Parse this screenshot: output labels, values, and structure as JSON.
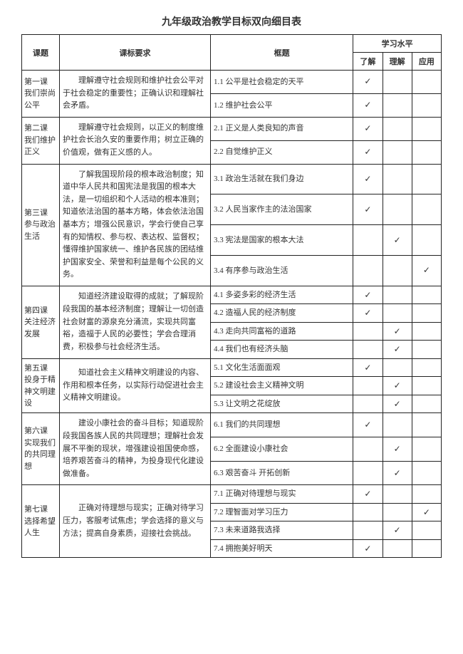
{
  "title": "九年级政治教学目标双向细目表",
  "headers": {
    "lesson": "课题",
    "requirement": "课标要求",
    "framework": "框题",
    "level_group": "学习水平",
    "l1": "了解",
    "l2": "理解",
    "l3": "应用"
  },
  "check": "✓",
  "lessons": [
    {
      "name": "第一课 我们崇尚公平",
      "req": "理解遵守社会规则和维护社会公平对于社会稳定的重要性；正确认识和理解社会矛盾。",
      "rows": [
        {
          "frame": "1.1 公平是社会稳定的天平",
          "lv": [
            true,
            false,
            false
          ]
        },
        {
          "frame": "1.2 维护社会公平",
          "lv": [
            true,
            false,
            false
          ]
        }
      ]
    },
    {
      "name": "第二课 我们维护正义",
      "req": "理解遵守社会规则，以正义的制度维护社会长治久安的重要作用；树立正确的价值观，做有正义感的人。",
      "rows": [
        {
          "frame": "2.1 正义是人类良知的声音",
          "lv": [
            true,
            false,
            false
          ]
        },
        {
          "frame": "2.2 自觉维护正义",
          "lv": [
            true,
            false,
            false
          ]
        }
      ]
    },
    {
      "name": "第三课 参与政治生活",
      "req": "了解我国现阶段的根本政治制度；知道中华人民共和国宪法是我国的根本大法，是一切组织和个人活动的根本准则；知道依法治国的基本方略，体会依法治国基本方；增强公民意识，学会行使自己享有的知情权、参与权、表达权、监督权；懂得维护国家统一、维护各民族的团结维护国家安全、荣誉和利益是每个公民的义务。",
      "rows": [
        {
          "frame": "3.1 政治生活就在我们身边",
          "lv": [
            true,
            false,
            false
          ]
        },
        {
          "frame": "3.2 人民当家作主的法治国家",
          "lv": [
            true,
            false,
            false
          ]
        },
        {
          "frame": "3.3 宪法是国家的根本大法",
          "lv": [
            false,
            true,
            false
          ]
        },
        {
          "frame": "3.4 有序参与政治生活",
          "lv": [
            false,
            false,
            true
          ]
        }
      ]
    },
    {
      "name": "第四课 关注经济发展",
      "req": "知道经济建设取得的成就；了解现阶段我国的基本经济制度；理解让一切创造社会财富的源泉充分涌流，实现共同富裕，造福于人民的必要性；学会合理消费，积极参与社会经济生活。",
      "rows": [
        {
          "frame": "4.1 多姿多彩的经济生活",
          "lv": [
            true,
            false,
            false
          ]
        },
        {
          "frame": "4.2 造福人民的经济制度",
          "lv": [
            true,
            false,
            false
          ]
        },
        {
          "frame": "4.3 走向共同富裕的道路",
          "lv": [
            false,
            true,
            false
          ]
        },
        {
          "frame": "4.4 我们也有经济头脑",
          "lv": [
            false,
            true,
            false
          ]
        }
      ]
    },
    {
      "name": "第五课 投身于精神文明建设",
      "req": "知道社会主义精神文明建设的内容、作用和根本任务，以实际行动促进社会主义精神文明建设。",
      "rows": [
        {
          "frame": "5.1 文化生活面面观",
          "lv": [
            true,
            false,
            false
          ]
        },
        {
          "frame": "5.2 建设社会主义精神文明",
          "lv": [
            false,
            true,
            false
          ]
        },
        {
          "frame": "5.3 让文明之花绽放",
          "lv": [
            false,
            true,
            false
          ]
        }
      ]
    },
    {
      "name": "第六课 实现我们的共同理想",
      "req": "建设小康社会的奋斗目标；知道现阶段我国各族人民的共同理想；理解社会发展不平衡的现状，增强建设祖国使命感，培养艰苦奋斗的精神，为投身现代化建设做准备。",
      "rows": [
        {
          "frame": "6.1 我们的共同理想",
          "lv": [
            true,
            false,
            false
          ]
        },
        {
          "frame": "6.2 全面建设小康社会",
          "lv": [
            false,
            true,
            false
          ]
        },
        {
          "frame": "6.3 艰苦奋斗 开拓创新",
          "lv": [
            false,
            true,
            false
          ]
        }
      ]
    },
    {
      "name": "第七课 选择希望人生",
      "req": "正确对待理想与现实；正确对待学习压力，客服考试焦虑；学会选择的意义与方法；提高自身素质，迎接社会挑战。",
      "rows": [
        {
          "frame": "7.1 正确对待理想与现实",
          "lv": [
            true,
            false,
            false
          ]
        },
        {
          "frame": "7.2 理智面对学习压力",
          "lv": [
            false,
            false,
            true
          ]
        },
        {
          "frame": "7.3 未来道路我选择",
          "lv": [
            false,
            true,
            false
          ]
        },
        {
          "frame": "7.4 拥抱美好明天",
          "lv": [
            true,
            false,
            false
          ]
        }
      ]
    }
  ]
}
